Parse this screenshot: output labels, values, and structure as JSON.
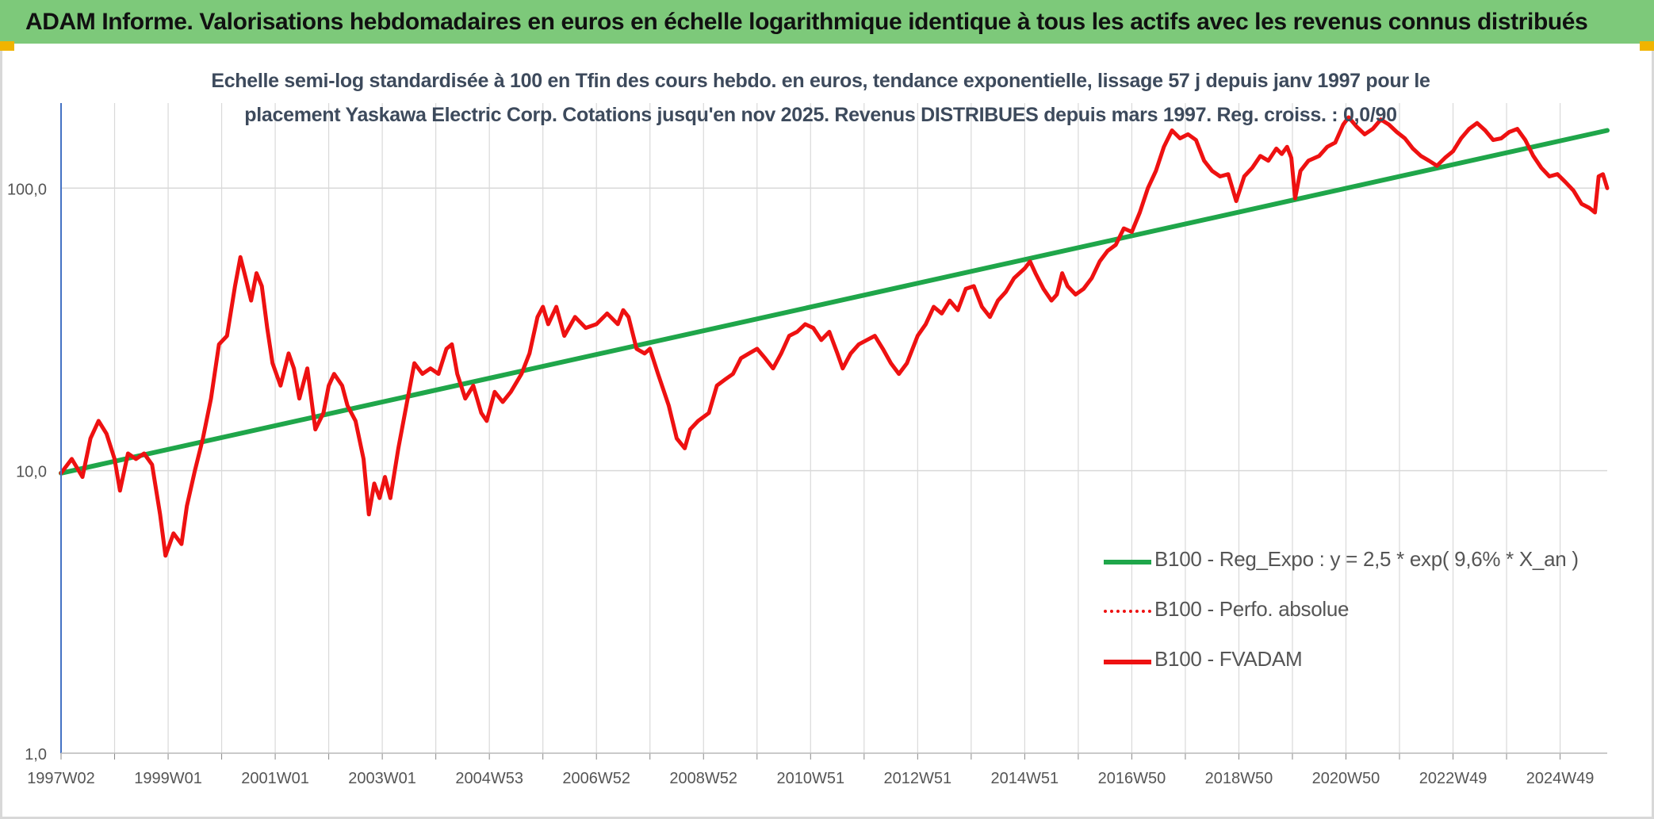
{
  "header": {
    "title": "ADAM Informe. Valorisations hebdomadaires en euros en échelle logarithmique identique à tous les actifs avec les revenus connus distribués"
  },
  "colors": {
    "banner": "#7dc97a",
    "accent": "#f0b400",
    "trend": "#1fa64a",
    "price": "#ee1111",
    "grid": "#d9d9d9",
    "axis": "#4472c4"
  },
  "chart_data": {
    "type": "line",
    "title_line1": "Echelle semi-log standardisée à 100 en Tfin des cours hebdo. en euros, tendance exponentielle, lissage 57 j depuis janv 1997 pour le",
    "title_line2": "placement Yaskawa Electric Corp. Cotations jusqu'en nov 2025. Revenus DISTRIBUES depuis mars 1997. Reg. croiss. : 0,0/90",
    "y_scale": "log",
    "ylim": [
      1,
      200
    ],
    "y_ticks": [
      {
        "value": 1,
        "label": "1,0"
      },
      {
        "value": 10,
        "label": "10,0"
      },
      {
        "value": 100,
        "label": "100,0"
      }
    ],
    "x_range": [
      1997.0,
      2025.88
    ],
    "x_ticks": [
      {
        "x": 1997.0,
        "label": "1997W02"
      },
      {
        "x": 1999.0,
        "label": "1999W01"
      },
      {
        "x": 2001.0,
        "label": "2001W01"
      },
      {
        "x": 2003.0,
        "label": "2003W01"
      },
      {
        "x": 2005.0,
        "label": "2004W53"
      },
      {
        "x": 2007.0,
        "label": "2006W52"
      },
      {
        "x": 2009.0,
        "label": "2008W52"
      },
      {
        "x": 2011.0,
        "label": "2010W51"
      },
      {
        "x": 2013.0,
        "label": "2012W51"
      },
      {
        "x": 2015.0,
        "label": "2014W51"
      },
      {
        "x": 2017.0,
        "label": "2016W50"
      },
      {
        "x": 2019.0,
        "label": "2018W50"
      },
      {
        "x": 2021.0,
        "label": "2020W50"
      },
      {
        "x": 2023.0,
        "label": "2022W49"
      },
      {
        "x": 2025.0,
        "label": "2024W49"
      }
    ],
    "legend_position": "bottom-right",
    "series": [
      {
        "name": "B100 - Reg_Expo : y = 2,5 * exp( 9,6% *  X_an )",
        "style": "solid",
        "color": "#1fa64a",
        "points": [
          [
            1997.0,
            9.8
          ],
          [
            2025.88,
            160
          ]
        ]
      },
      {
        "name": "B100 - Perfo. absolue",
        "style": "dotted",
        "color": "#ee1111",
        "points": []
      },
      {
        "name": "B100 - FVADAM",
        "style": "solid",
        "color": "#ee1111",
        "points": [
          [
            1997.0,
            9.8
          ],
          [
            1997.2,
            11
          ],
          [
            1997.4,
            9.5
          ],
          [
            1997.55,
            13
          ],
          [
            1997.7,
            15
          ],
          [
            1997.85,
            13.5
          ],
          [
            1998.0,
            11
          ],
          [
            1998.1,
            8.5
          ],
          [
            1998.25,
            11.5
          ],
          [
            1998.4,
            11
          ],
          [
            1998.55,
            11.5
          ],
          [
            1998.7,
            10.5
          ],
          [
            1998.85,
            7
          ],
          [
            1998.95,
            5
          ],
          [
            1999.1,
            6
          ],
          [
            1999.25,
            5.5
          ],
          [
            1999.35,
            7.5
          ],
          [
            1999.5,
            10
          ],
          [
            1999.65,
            13
          ],
          [
            1999.8,
            18
          ],
          [
            1999.95,
            28
          ],
          [
            2000.1,
            30
          ],
          [
            2000.25,
            45
          ],
          [
            2000.35,
            57
          ],
          [
            2000.45,
            48
          ],
          [
            2000.55,
            40
          ],
          [
            2000.65,
            50
          ],
          [
            2000.75,
            45
          ],
          [
            2000.85,
            32
          ],
          [
            2000.95,
            24
          ],
          [
            2001.1,
            20
          ],
          [
            2001.25,
            26
          ],
          [
            2001.35,
            23
          ],
          [
            2001.45,
            18
          ],
          [
            2001.6,
            23
          ],
          [
            2001.75,
            14
          ],
          [
            2001.9,
            16
          ],
          [
            2002.0,
            20
          ],
          [
            2002.1,
            22
          ],
          [
            2002.25,
            20
          ],
          [
            2002.35,
            17
          ],
          [
            2002.5,
            15
          ],
          [
            2002.65,
            11
          ],
          [
            2002.75,
            7
          ],
          [
            2002.85,
            9
          ],
          [
            2002.95,
            8
          ],
          [
            2003.05,
            9.5
          ],
          [
            2003.15,
            8
          ],
          [
            2003.3,
            12
          ],
          [
            2003.45,
            17
          ],
          [
            2003.6,
            24
          ],
          [
            2003.75,
            22
          ],
          [
            2003.9,
            23
          ],
          [
            2004.05,
            22
          ],
          [
            2004.2,
            27
          ],
          [
            2004.3,
            28
          ],
          [
            2004.4,
            22
          ],
          [
            2004.55,
            18
          ],
          [
            2004.7,
            20
          ],
          [
            2004.85,
            16
          ],
          [
            2004.95,
            15
          ],
          [
            2005.1,
            19
          ],
          [
            2005.25,
            17.5
          ],
          [
            2005.4,
            19
          ],
          [
            2005.6,
            22
          ],
          [
            2005.75,
            26
          ],
          [
            2005.9,
            35
          ],
          [
            2006.0,
            38
          ],
          [
            2006.1,
            33
          ],
          [
            2006.25,
            38
          ],
          [
            2006.4,
            30
          ],
          [
            2006.6,
            35
          ],
          [
            2006.8,
            32
          ],
          [
            2007.0,
            33
          ],
          [
            2007.2,
            36
          ],
          [
            2007.4,
            33
          ],
          [
            2007.5,
            37
          ],
          [
            2007.6,
            35
          ],
          [
            2007.75,
            27
          ],
          [
            2007.9,
            26
          ],
          [
            2008.0,
            27
          ],
          [
            2008.15,
            22
          ],
          [
            2008.35,
            17
          ],
          [
            2008.5,
            13
          ],
          [
            2008.65,
            12
          ],
          [
            2008.75,
            14
          ],
          [
            2008.9,
            15
          ],
          [
            2009.1,
            16
          ],
          [
            2009.25,
            20
          ],
          [
            2009.4,
            21
          ],
          [
            2009.55,
            22
          ],
          [
            2009.7,
            25
          ],
          [
            2009.85,
            26
          ],
          [
            2010.0,
            27
          ],
          [
            2010.15,
            25
          ],
          [
            2010.3,
            23
          ],
          [
            2010.45,
            26
          ],
          [
            2010.6,
            30
          ],
          [
            2010.75,
            31
          ],
          [
            2010.9,
            33
          ],
          [
            2011.05,
            32
          ],
          [
            2011.2,
            29
          ],
          [
            2011.35,
            31
          ],
          [
            2011.5,
            26
          ],
          [
            2011.6,
            23
          ],
          [
            2011.75,
            26
          ],
          [
            2011.9,
            28
          ],
          [
            2012.05,
            29
          ],
          [
            2012.2,
            30
          ],
          [
            2012.35,
            27
          ],
          [
            2012.5,
            24
          ],
          [
            2012.65,
            22
          ],
          [
            2012.8,
            24
          ],
          [
            2013.0,
            30
          ],
          [
            2013.15,
            33
          ],
          [
            2013.3,
            38
          ],
          [
            2013.45,
            36
          ],
          [
            2013.6,
            40
          ],
          [
            2013.75,
            37
          ],
          [
            2013.9,
            44
          ],
          [
            2014.05,
            45
          ],
          [
            2014.2,
            38
          ],
          [
            2014.35,
            35
          ],
          [
            2014.5,
            40
          ],
          [
            2014.65,
            43
          ],
          [
            2014.8,
            48
          ],
          [
            2015.0,
            52
          ],
          [
            2015.1,
            55
          ],
          [
            2015.2,
            50
          ],
          [
            2015.35,
            44
          ],
          [
            2015.5,
            40
          ],
          [
            2015.6,
            42
          ],
          [
            2015.7,
            50
          ],
          [
            2015.8,
            45
          ],
          [
            2015.95,
            42
          ],
          [
            2016.1,
            44
          ],
          [
            2016.25,
            48
          ],
          [
            2016.4,
            55
          ],
          [
            2016.55,
            60
          ],
          [
            2016.7,
            63
          ],
          [
            2016.85,
            72
          ],
          [
            2017.0,
            70
          ],
          [
            2017.15,
            82
          ],
          [
            2017.3,
            100
          ],
          [
            2017.45,
            115
          ],
          [
            2017.6,
            140
          ],
          [
            2017.75,
            160
          ],
          [
            2017.9,
            150
          ],
          [
            2018.05,
            155
          ],
          [
            2018.2,
            148
          ],
          [
            2018.35,
            125
          ],
          [
            2018.5,
            115
          ],
          [
            2018.65,
            110
          ],
          [
            2018.8,
            112
          ],
          [
            2018.95,
            90
          ],
          [
            2019.1,
            110
          ],
          [
            2019.25,
            118
          ],
          [
            2019.4,
            130
          ],
          [
            2019.55,
            125
          ],
          [
            2019.7,
            138
          ],
          [
            2019.8,
            132
          ],
          [
            2019.9,
            140
          ],
          [
            2019.98,
            128
          ],
          [
            2020.05,
            92
          ],
          [
            2020.15,
            115
          ],
          [
            2020.3,
            125
          ],
          [
            2020.5,
            130
          ],
          [
            2020.65,
            140
          ],
          [
            2020.8,
            145
          ],
          [
            2020.95,
            168
          ],
          [
            2021.05,
            178
          ],
          [
            2021.2,
            165
          ],
          [
            2021.35,
            155
          ],
          [
            2021.5,
            162
          ],
          [
            2021.65,
            175
          ],
          [
            2021.8,
            168
          ],
          [
            2021.95,
            158
          ],
          [
            2022.1,
            150
          ],
          [
            2022.25,
            138
          ],
          [
            2022.4,
            130
          ],
          [
            2022.55,
            125
          ],
          [
            2022.7,
            120
          ],
          [
            2022.85,
            128
          ],
          [
            2023.0,
            135
          ],
          [
            2023.15,
            150
          ],
          [
            2023.3,
            162
          ],
          [
            2023.45,
            170
          ],
          [
            2023.6,
            160
          ],
          [
            2023.75,
            148
          ],
          [
            2023.9,
            150
          ],
          [
            2024.05,
            158
          ],
          [
            2024.2,
            162
          ],
          [
            2024.35,
            148
          ],
          [
            2024.5,
            130
          ],
          [
            2024.65,
            118
          ],
          [
            2024.8,
            110
          ],
          [
            2024.95,
            112
          ],
          [
            2025.1,
            105
          ],
          [
            2025.25,
            98
          ],
          [
            2025.4,
            88
          ],
          [
            2025.55,
            85
          ],
          [
            2025.65,
            82
          ],
          [
            2025.72,
            110
          ],
          [
            2025.8,
            112
          ],
          [
            2025.88,
            100
          ]
        ]
      }
    ]
  }
}
